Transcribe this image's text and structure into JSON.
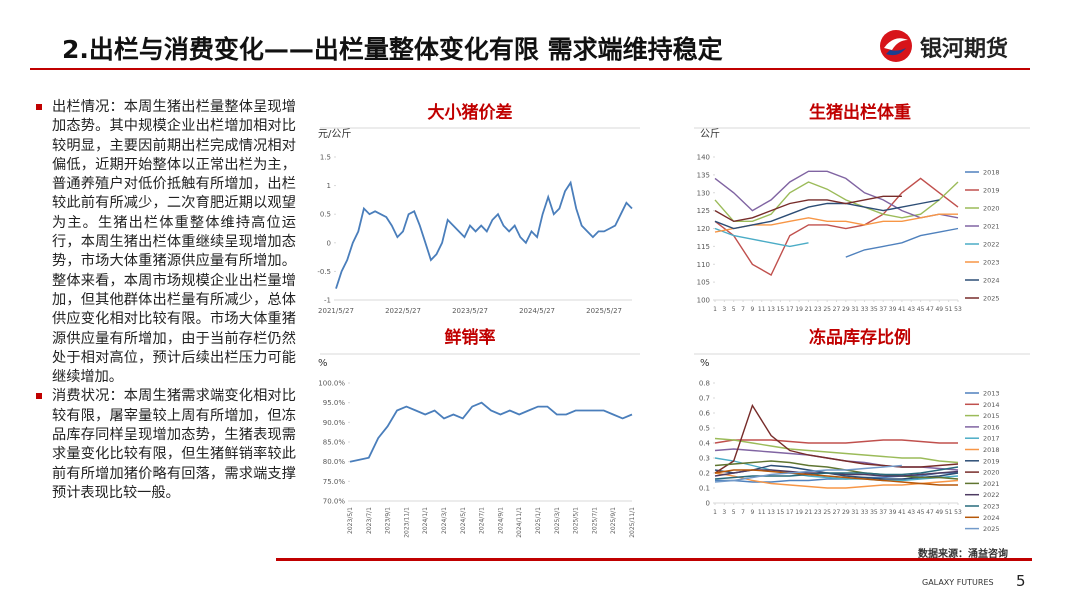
{
  "header": {
    "title": "2.出栏与消费变化——出栏量整体变化有限 需求端维持稳定",
    "logo": "银河期货"
  },
  "bullets": [
    "出栏情况：本周生猪出栏量整体呈现增加态势。其中规模企业出栏增加相对比较明显，主要因前期出栏完成情况相对偏低，近期开始整体以正常出栏为主，普通养殖户对低价抵触有所增加，出栏较此前有所减少，二次育肥近期以观望为主。生猪出栏体重整体维持高位运行，本周生猪出栏体重继续呈现增加态势，市场大体重猪源供应量有所增加。整体来看，本周市场规模企业出栏量增加，但其他群体出栏量有所减少，总体供应变化相对比较有限。市场大体重猪源供应量有所增加，由于当前存栏仍然处于相对高位，预计后续出栏压力可能继续增加。",
    "消费状况：本周生猪需求端变化相对比较有限，屠宰量较上周有所增加，但冻品库存同样呈现增加态势，生猪表现需求量变化比较有限，但生猪鲜销率较此前有所增加猪价略有回落，需求端支撑预计表现比较一般。"
  ],
  "chart_data": [
    {
      "type": "line",
      "title": "大小猪价差",
      "y_label": "元/公斤",
      "categories": [
        "2021/5/27",
        null,
        null,
        null,
        null,
        null,
        null,
        null,
        null,
        null,
        null,
        null,
        "2022/5/27",
        null,
        null,
        null,
        null,
        null,
        null,
        null,
        null,
        null,
        null,
        null,
        "2023/5/27",
        null,
        null,
        null,
        null,
        null,
        null,
        null,
        null,
        null,
        null,
        null,
        "2024/5/27",
        null,
        null,
        null,
        null,
        null,
        null,
        null,
        null,
        null,
        null,
        null,
        "2025/5/27",
        null,
        null,
        null,
        null,
        null
      ],
      "series": [
        {
          "name": "大小猪价差",
          "color": "#4a7ebb",
          "values": [
            -0.8,
            -0.5,
            -0.3,
            0.0,
            0.2,
            0.6,
            0.5,
            0.55,
            0.5,
            0.45,
            0.3,
            0.1,
            0.2,
            0.5,
            0.55,
            0.3,
            0.0,
            -0.3,
            -0.2,
            0.0,
            0.4,
            0.3,
            0.2,
            0.1,
            0.3,
            0.2,
            0.3,
            0.2,
            0.4,
            0.5,
            0.3,
            0.2,
            0.3,
            0.1,
            0.0,
            0.2,
            0.1,
            0.5,
            0.8,
            0.5,
            0.6,
            0.9,
            1.05,
            0.6,
            0.3,
            0.2,
            0.1,
            0.2,
            0.2,
            0.25,
            0.3,
            0.5,
            0.7,
            0.6
          ]
        }
      ],
      "ylim": [
        -1,
        1.5
      ],
      "yticks": [
        -1,
        -0.5,
        0,
        0.5,
        1,
        1.5
      ]
    },
    {
      "type": "line",
      "title": "生猪出栏体重",
      "y_label": "公斤",
      "x": [
        1,
        5,
        9,
        13,
        17,
        21,
        25,
        29,
        33,
        37,
        41,
        45,
        49,
        53
      ],
      "xlim": [
        1,
        53
      ],
      "xticks": [
        1,
        3,
        5,
        7,
        9,
        11,
        13,
        15,
        17,
        19,
        21,
        23,
        25,
        27,
        29,
        31,
        33,
        35,
        37,
        39,
        41,
        43,
        45,
        47,
        49,
        51,
        53
      ],
      "ylim": [
        100,
        140
      ],
      "yticks": [
        100,
        105,
        110,
        115,
        120,
        125,
        130,
        135,
        140
      ],
      "series": [
        {
          "name": "2018",
          "color": "#4f81bd",
          "values": [
            null,
            null,
            null,
            null,
            null,
            null,
            null,
            112,
            114,
            115,
            116,
            118,
            119,
            120
          ]
        },
        {
          "name": "2019",
          "color": "#c0504d",
          "values": [
            122,
            118,
            110,
            107,
            118,
            121,
            121,
            120,
            121,
            124,
            130,
            134,
            130,
            126
          ]
        },
        {
          "name": "2020",
          "color": "#9bbb59",
          "values": [
            128,
            122,
            122,
            124,
            130,
            133,
            131,
            128,
            126,
            124,
            123,
            124,
            128,
            133
          ]
        },
        {
          "name": "2021",
          "color": "#8064a2",
          "values": [
            134,
            130,
            125,
            128,
            133,
            136,
            136,
            134,
            130,
            128,
            125,
            123,
            124,
            123
          ]
        },
        {
          "name": "2022",
          "color": "#4bacc6",
          "values": [
            120,
            118,
            117,
            116,
            115,
            116,
            null,
            null,
            null,
            null,
            null,
            null,
            null,
            null
          ]
        },
        {
          "name": "2023",
          "color": "#f79646",
          "values": [
            119,
            120,
            121,
            121,
            122,
            123,
            122,
            122,
            121,
            122,
            122,
            123,
            124,
            124
          ]
        },
        {
          "name": "2024",
          "color": "#2c4d75",
          "values": [
            122,
            120,
            121,
            122,
            124,
            126,
            127,
            127,
            126,
            125,
            126,
            127,
            128,
            null
          ]
        },
        {
          "name": "2025",
          "color": "#772c2a",
          "values": [
            125,
            122,
            123,
            125,
            127,
            128,
            128,
            127,
            128,
            129,
            129,
            null,
            null,
            null
          ]
        }
      ]
    },
    {
      "type": "line",
      "title": "鲜销率",
      "y_label": "%",
      "categories": [
        "2023/5/1",
        null,
        "2023/7/1",
        null,
        "2023/9/1",
        null,
        "2023/11/1",
        null,
        "2024/1/1",
        null,
        "2024/3/1",
        null,
        "2024/5/1",
        null,
        "2024/7/1",
        null,
        "2024/9/1",
        null,
        "2024/11/1",
        null,
        "2025/1/1",
        null,
        "2025/3/1",
        null,
        "2025/5/1",
        null,
        "2025/7/1",
        null,
        "2025/9/1",
        null,
        "2025/11/1"
      ],
      "series": [
        {
          "name": "鲜销率",
          "color": "#4a7ebb",
          "values": [
            80,
            80.5,
            81,
            86,
            89,
            93,
            94,
            93,
            92,
            93,
            91,
            92,
            91,
            94,
            95,
            93,
            92,
            93,
            92,
            93,
            94,
            94,
            92,
            92,
            93,
            93,
            93,
            93,
            92,
            91,
            92
          ]
        }
      ],
      "ylim": [
        70,
        100
      ],
      "yticks": [
        {
          "value": 70,
          "label": "70.0%"
        },
        {
          "value": 75,
          "label": "75.0%"
        },
        {
          "value": 80,
          "label": "80.0%"
        },
        {
          "value": 85,
          "label": "85.0%"
        },
        {
          "value": 90,
          "label": "90.0%"
        },
        {
          "value": 95,
          "label": "95.0%"
        },
        {
          "value": 100,
          "label": "100.0%"
        }
      ]
    },
    {
      "type": "line",
      "title": "冻品库存比例",
      "y_label": "%",
      "x": [
        1,
        5,
        9,
        13,
        17,
        21,
        25,
        29,
        33,
        37,
        41,
        45,
        49,
        53
      ],
      "xlim": [
        1,
        53
      ],
      "xticks": [
        1,
        3,
        5,
        7,
        9,
        11,
        13,
        15,
        17,
        19,
        21,
        23,
        25,
        27,
        29,
        31,
        33,
        35,
        37,
        39,
        41,
        43,
        45,
        47,
        49,
        51,
        53
      ],
      "ylim": [
        0,
        0.8
      ],
      "yticks": [
        0,
        0.1,
        0.2,
        0.3,
        0.4,
        0.5,
        0.6,
        0.7,
        0.8
      ],
      "series": [
        {
          "name": "2013",
          "color": "#4f81bd",
          "values": [
            0.15,
            0.15,
            0.14,
            0.14,
            0.15,
            0.15,
            0.16,
            0.16,
            0.17,
            0.17,
            0.18,
            0.18,
            0.2,
            0.2
          ]
        },
        {
          "name": "2014",
          "color": "#c0504d",
          "values": [
            0.4,
            0.42,
            0.42,
            0.42,
            0.41,
            0.4,
            0.4,
            0.4,
            0.41,
            0.42,
            0.42,
            0.41,
            0.4,
            0.4
          ]
        },
        {
          "name": "2015",
          "color": "#9bbb59",
          "values": [
            0.43,
            0.42,
            0.4,
            0.38,
            0.36,
            0.35,
            0.34,
            0.33,
            0.32,
            0.31,
            0.3,
            0.3,
            0.28,
            0.27
          ]
        },
        {
          "name": "2016",
          "color": "#8064a2",
          "values": [
            0.35,
            0.36,
            0.35,
            0.34,
            0.33,
            0.32,
            0.3,
            0.28,
            0.27,
            0.25,
            0.24,
            0.24,
            0.23,
            0.22
          ]
        },
        {
          "name": "2017",
          "color": "#4bacc6",
          "values": [
            0.3,
            0.28,
            0.25,
            0.22,
            0.2,
            0.18,
            0.17,
            0.16,
            0.16,
            0.15,
            0.15,
            0.16,
            0.17,
            0.18
          ]
        },
        {
          "name": "2018",
          "color": "#f79646",
          "values": [
            0.2,
            0.18,
            0.15,
            0.13,
            0.12,
            0.11,
            0.1,
            0.1,
            0.11,
            0.12,
            0.12,
            0.13,
            0.14,
            0.15
          ]
        },
        {
          "name": "2019",
          "color": "#2c4d75",
          "values": [
            0.22,
            0.2,
            0.22,
            0.25,
            0.24,
            0.22,
            0.2,
            0.18,
            0.17,
            0.16,
            0.16,
            0.17,
            0.18,
            0.2
          ]
        },
        {
          "name": "2020",
          "color": "#772c2a",
          "values": [
            0.2,
            0.28,
            0.65,
            0.45,
            0.35,
            0.32,
            0.3,
            0.28,
            0.26,
            0.25,
            0.24,
            0.24,
            0.25,
            0.26
          ]
        },
        {
          "name": "2021",
          "color": "#5f7530",
          "values": [
            0.25,
            0.26,
            0.27,
            0.28,
            0.27,
            0.25,
            0.24,
            0.22,
            0.2,
            0.19,
            0.18,
            0.17,
            0.17,
            0.16
          ]
        },
        {
          "name": "2022",
          "color": "#4d3b62",
          "values": [
            0.18,
            0.2,
            0.22,
            0.22,
            0.21,
            0.2,
            0.2,
            0.19,
            0.19,
            0.18,
            0.18,
            0.19,
            0.2,
            0.21
          ]
        },
        {
          "name": "2023",
          "color": "#276a7c",
          "values": [
            0.16,
            0.17,
            0.18,
            0.18,
            0.18,
            0.19,
            0.2,
            0.2,
            0.2,
            0.19,
            0.19,
            0.2,
            0.22,
            0.24
          ]
        },
        {
          "name": "2024",
          "color": "#b65708",
          "values": [
            0.2,
            0.22,
            0.22,
            0.21,
            0.2,
            0.19,
            0.18,
            0.17,
            0.16,
            0.15,
            0.14,
            0.13,
            0.12,
            0.12
          ]
        },
        {
          "name": "2025",
          "color": "#729aca",
          "values": [
            0.14,
            0.15,
            0.17,
            0.19,
            0.2,
            0.21,
            0.22,
            0.22,
            0.23,
            0.24,
            0.25,
            null,
            null,
            null
          ]
        }
      ]
    }
  ],
  "source": "数据来源：涌益咨询",
  "footer": {
    "brand": "GALAXY FUTURES",
    "page": "5"
  }
}
